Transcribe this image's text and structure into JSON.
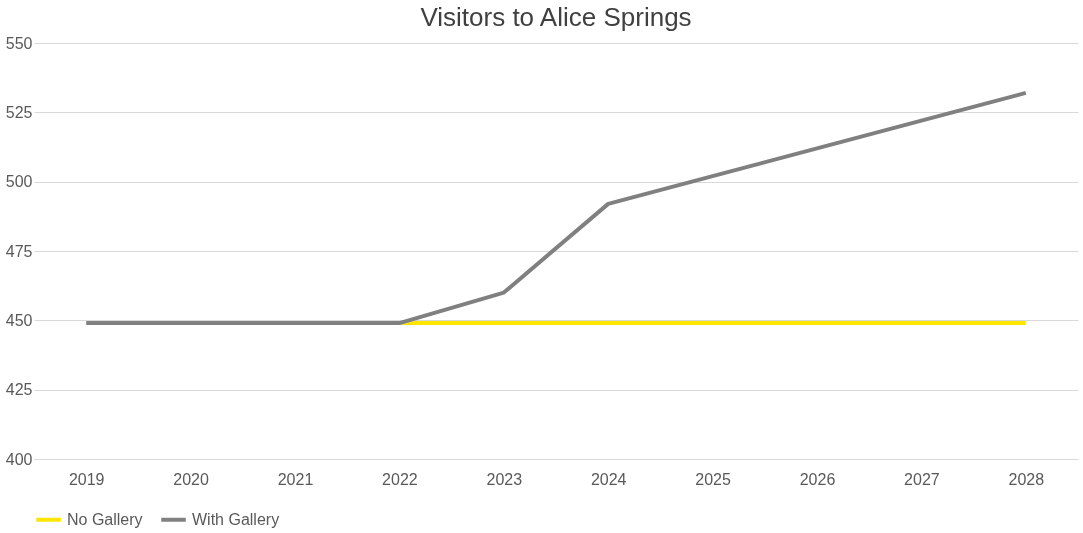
{
  "chart_data": {
    "type": "line",
    "title": "Visitors to Alice Springs",
    "categories": [
      "2019",
      "2020",
      "2021",
      "2022",
      "2023",
      "2024",
      "2025",
      "2026",
      "2027",
      "2028"
    ],
    "series": [
      {
        "name": "No Gallery",
        "color": "#ffe600",
        "values": [
          null,
          null,
          null,
          449,
          449,
          449,
          449,
          449,
          449,
          449
        ]
      },
      {
        "name": "With Gallery",
        "color": "#808080",
        "values": [
          449,
          449,
          449,
          449,
          460,
          492,
          502,
          512,
          522,
          532
        ]
      }
    ],
    "ylim": [
      400,
      550
    ],
    "yticks": [
      400,
      425,
      450,
      475,
      500,
      525,
      550
    ],
    "grid": "y",
    "legend": "bottom",
    "marker": "none",
    "line_style": "solid"
  }
}
